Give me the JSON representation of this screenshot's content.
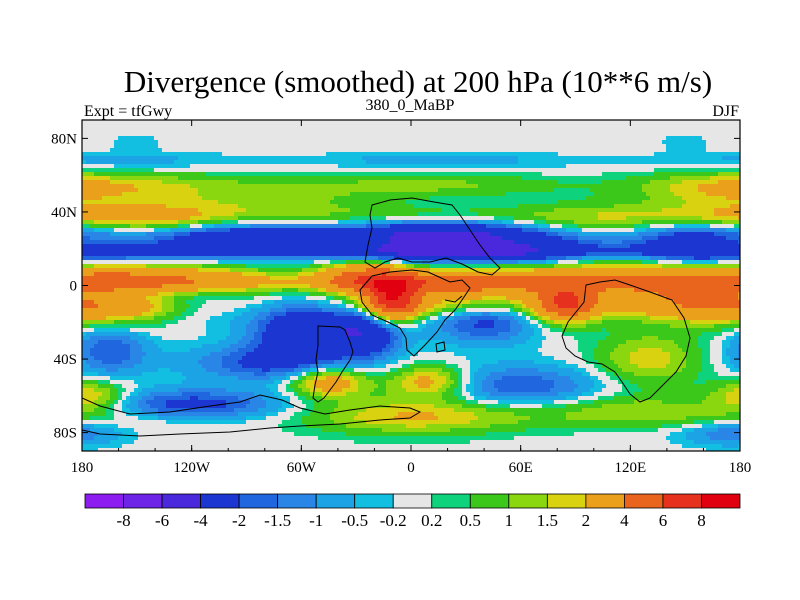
{
  "chart_data": {
    "type": "heatmap",
    "title": "Divergence (smoothed) at 200 hPa (10**6 m/s)",
    "left_string": "Expt = tfGwy",
    "center_string": "380_0_MaBP",
    "right_string": "DJF",
    "x_ticks": [
      "180",
      "120W",
      "60W",
      "0",
      "60E",
      "120E",
      "180"
    ],
    "x_tick_values": [
      -180,
      -120,
      -60,
      0,
      60,
      120,
      180
    ],
    "y_ticks": [
      "80N",
      "40N",
      "0",
      "40S",
      "80S"
    ],
    "y_tick_values": [
      80,
      40,
      0,
      -40,
      -80
    ],
    "xlim": [
      -180,
      180
    ],
    "ylim": [
      -90,
      90
    ],
    "colorbar_labels": [
      "-8",
      "-6",
      "-4",
      "-2",
      "-1.5",
      "-1",
      "-0.5",
      "-0.2",
      "0.2",
      "0.5",
      "1",
      "1.5",
      "2",
      "4",
      "6",
      "8"
    ],
    "contour_levels": [
      -8,
      -6,
      -4,
      -2,
      -1.5,
      -1,
      -0.5,
      -0.2,
      0.2,
      0.5,
      1,
      1.5,
      2,
      4,
      6,
      8
    ],
    "colors": [
      "#8c1cf0",
      "#6d24e6",
      "#4a28dc",
      "#1c36d2",
      "#1f66df",
      "#2a86e6",
      "#1ca3e6",
      "#12bfe0",
      "#e6e6e6",
      "#0fd27d",
      "#3cc81a",
      "#8ad60f",
      "#d9d210",
      "#eaa01a",
      "#e9651e",
      "#e5311d",
      "#e0000f"
    ],
    "features": [
      {
        "lon": -95,
        "lat": 25,
        "value": -3.5,
        "lonw": 45,
        "latw": 6
      },
      {
        "lon": 15,
        "lat": 27,
        "value": -3.0,
        "lonw": 35,
        "latw": 8
      },
      {
        "lon": 75,
        "lat": 20,
        "value": -3.0,
        "lonw": 45,
        "latw": 8
      },
      {
        "lon": 150,
        "lat": 22,
        "value": -2.2,
        "lonw": 20,
        "latw": 8
      },
      {
        "lon": -140,
        "lat": 30,
        "value": 1.5,
        "lonw": 25,
        "latw": 8
      },
      {
        "lon": 100,
        "lat": 33,
        "value": 1.5,
        "lonw": 35,
        "latw": 8
      },
      {
        "lon": -100,
        "lat": 45,
        "value": 1.3,
        "lonw": 70,
        "latw": 9
      },
      {
        "lon": 170,
        "lat": 50,
        "value": 1.2,
        "lonw": 30,
        "latw": 9
      },
      {
        "lon": -145,
        "lat": 5,
        "value": 2.2,
        "lonw": 40,
        "latw": 6
      },
      {
        "lon": -100,
        "lat": 0,
        "value": 1.2,
        "lonw": 40,
        "latw": 6
      },
      {
        "lon": -25,
        "lat": 4,
        "value": 4.0,
        "lonw": 18,
        "latw": 7
      },
      {
        "lon": -10,
        "lat": -8,
        "value": 6.5,
        "lonw": 10,
        "latw": 8
      },
      {
        "lon": 30,
        "lat": 0,
        "value": 3.0,
        "lonw": 28,
        "latw": 8
      },
      {
        "lon": 110,
        "lat": 5,
        "value": 3.5,
        "lonw": 45,
        "latw": 10
      },
      {
        "lon": 85,
        "lat": -10,
        "value": 5.0,
        "lonw": 12,
        "latw": 7
      },
      {
        "lon": 150,
        "lat": -8,
        "value": 2.0,
        "lonw": 25,
        "latw": 8
      },
      {
        "lon": -160,
        "lat": -12,
        "value": 2.5,
        "lonw": 30,
        "latw": 8
      },
      {
        "lon": -125,
        "lat": -10,
        "value": -1.8,
        "lonw": 25,
        "latw": 8
      },
      {
        "lon": -60,
        "lat": -25,
        "value": -3.5,
        "lonw": 18,
        "latw": 12
      },
      {
        "lon": -25,
        "lat": -25,
        "value": -3.5,
        "lonw": 14,
        "latw": 10
      },
      {
        "lon": 40,
        "lat": -18,
        "value": -2.5,
        "lonw": 20,
        "latw": 9
      },
      {
        "lon": -165,
        "lat": -35,
        "value": -2.0,
        "lonw": 15,
        "latw": 10
      },
      {
        "lon": -80,
        "lat": -42,
        "value": -2.0,
        "lonw": 30,
        "latw": 7
      },
      {
        "lon": -45,
        "lat": -52,
        "value": 3.0,
        "lonw": 15,
        "latw": 6
      },
      {
        "lon": 10,
        "lat": -52,
        "value": 2.5,
        "lonw": 15,
        "latw": 6
      },
      {
        "lon": 130,
        "lat": -40,
        "value": 1.8,
        "lonw": 20,
        "latw": 10
      },
      {
        "lon": 60,
        "lat": -55,
        "value": -2.0,
        "lonw": 30,
        "latw": 8
      },
      {
        "lon": -120,
        "lat": -65,
        "value": -2.5,
        "lonw": 35,
        "latw": 6
      },
      {
        "lon": 0,
        "lat": -70,
        "value": 1.5,
        "lonw": 40,
        "latw": 8
      },
      {
        "lon": 120,
        "lat": -68,
        "value": 1.3,
        "lonw": 40,
        "latw": 6
      },
      {
        "lon": -175,
        "lat": -60,
        "value": 2.2,
        "lonw": 15,
        "latw": 6
      },
      {
        "lon": -150,
        "lat": 80,
        "value": -1.0,
        "lonw": 10,
        "latw": 4
      },
      {
        "lon": 150,
        "lat": 80,
        "value": -1.0,
        "lonw": 10,
        "latw": 4
      },
      {
        "lon": 175,
        "lat": -80,
        "value": -1.5,
        "lonw": 20,
        "latw": 5
      }
    ]
  }
}
